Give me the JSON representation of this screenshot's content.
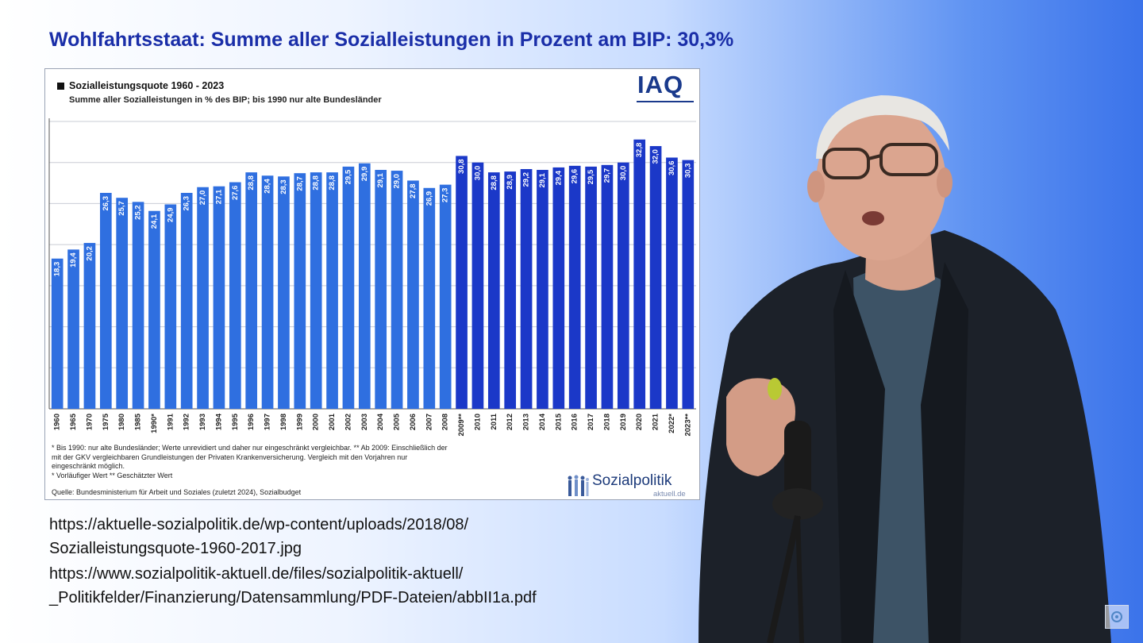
{
  "slide": {
    "title": "Wohlfahrtsstaat: Summe aller Sozialleistungen in Prozent am BIP: 30,3%"
  },
  "chart_data": {
    "type": "bar",
    "title": "Sozialleistungsquote 1960 - 2023",
    "subtitle": "Summe aller Sozialleistungen in % des BIP; bis 1990 nur alte Bundesländer",
    "categories": [
      "1960",
      "1965",
      "1970",
      "1975",
      "1980",
      "1985",
      "1990*",
      "1991",
      "1992",
      "1993",
      "1994",
      "1995",
      "1996",
      "1997",
      "1998",
      "1999",
      "2000",
      "2001",
      "2002",
      "2003",
      "2004",
      "2005",
      "2006",
      "2007",
      "2008",
      "2009**",
      "2010",
      "2011",
      "2012",
      "2013",
      "2014",
      "2015",
      "2016",
      "2017",
      "2018",
      "2019",
      "2020",
      "2021",
      "2022*",
      "2023**"
    ],
    "values": [
      18.3,
      19.4,
      20.2,
      26.3,
      25.7,
      25.2,
      24.1,
      24.9,
      26.3,
      27.0,
      27.1,
      27.6,
      28.8,
      28.4,
      28.3,
      28.7,
      28.8,
      28.8,
      29.5,
      29.9,
      29.1,
      29.0,
      27.8,
      26.9,
      27.3,
      30.8,
      30.0,
      28.8,
      28.9,
      29.2,
      29.1,
      29.4,
      29.6,
      29.5,
      29.7,
      30.0,
      32.8,
      32.0,
      30.6,
      30.3
    ],
    "value_labels": [
      "18,3",
      "19,4",
      "20,2",
      "26,3",
      "25,7",
      "25,2",
      "24,1",
      "24,9",
      "26,3",
      "27,0",
      "27,1",
      "27,6",
      "28,8",
      "28,4",
      "28,3",
      "28,7",
      "28,8",
      "28,8",
      "29,5",
      "29,9",
      "29,1",
      "29,0",
      "27,8",
      "26,9",
      "27,3",
      "30,8",
      "30,0",
      "28,8",
      "28,9",
      "29,2",
      "29,1",
      "29,4",
      "29,6",
      "29,5",
      "29,7",
      "30,0",
      "32,8",
      "32,0",
      "30,6",
      "30,3"
    ],
    "colors": {
      "light": "#2f6fe0",
      "dark": "#1b38c8"
    },
    "ylim": [
      0,
      35
    ],
    "grid": true,
    "legend": "top-left",
    "xlabel": "",
    "ylabel": ""
  },
  "chart": {
    "logo_text": "IAQ",
    "footnotes": [
      "* Bis 1990: nur alte Bundesländer; Werte unrevidiert und daher nur eingeschränkt vergleichbar. ** Ab 2009: Einschließlich der",
      "mit der GKV vergleichbaren Grundleistungen der Privaten Krankenversicherung. Vergleich mit den  Vorjahren nur",
      "eingeschränkt möglich.",
      "* Vorläufiger Wert   ** Geschätzter Wert"
    ],
    "source": "Quelle: Bundesministerium für Arbeit und Soziales (zuletzt 2024), Sozialbudget",
    "brand_logo": "Sozialpolitik",
    "brand_logo_sub": "aktuell.de"
  },
  "links": {
    "url1_line1": "https://aktuelle-sozialpolitik.de/wp-content/uploads/2018/08/",
    "url1_line2": "Sozialleistungsquote-1960-2017.jpg",
    "url2_line1": "https://www.sozialpolitik-aktuell.de/files/sozialpolitik-aktuell/",
    "url2_line2": "_Politikfelder/Finanzierung/Datensammlung/PDF-Dateien/abbII1a.pdf"
  },
  "icons": {
    "corner_button": "settings-gear-icon"
  }
}
